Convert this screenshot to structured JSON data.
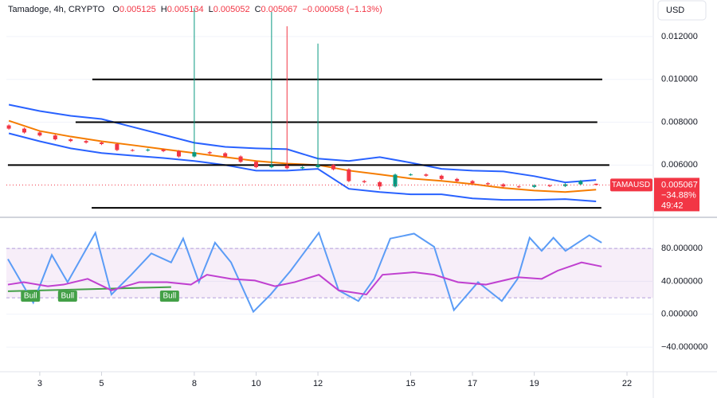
{
  "chart_data": [
    {
      "type": "candlestick",
      "header": {
        "symbol": "Tamadoge, 4h, CRYPTO",
        "ohlc": [
          {
            "key": "O",
            "value": "0.005125"
          },
          {
            "key": "H",
            "value": "0.005134"
          },
          {
            "key": "L",
            "value": "0.005052"
          },
          {
            "key": "C",
            "value": "0.005067"
          }
        ],
        "change": "−0.000058 (−1.13%)"
      },
      "currency": "USD",
      "xlim": [
        1.92,
        22.85
      ],
      "xticks": [
        3,
        5,
        8,
        10,
        12,
        15,
        17,
        19,
        22
      ],
      "ylim": [
        0.00367,
        0.01341
      ],
      "yticks": [
        {
          "value": 0.012,
          "label": "0.012000"
        },
        {
          "value": 0.01,
          "label": "0.010000"
        },
        {
          "value": 0.008,
          "label": "0.008000"
        },
        {
          "value": 0.006,
          "label": "0.006000"
        }
      ],
      "up_color": "#089981",
      "down_color": "#f23645",
      "candles": {
        "x": [
          2.0,
          2.5,
          3.0,
          3.5,
          4.0,
          4.5,
          5.0,
          5.5,
          6.0,
          6.5,
          7.0,
          7.5,
          8.0,
          8.5,
          9.0,
          9.5,
          10.0,
          10.5,
          11.0,
          11.5,
          12.0,
          12.5,
          13.0,
          13.5,
          14.0,
          14.5,
          15.0,
          15.5,
          16.0,
          16.5,
          17.0,
          17.5,
          18.0,
          18.5,
          19.0,
          19.5,
          20.0,
          20.5,
          21.0
        ],
        "open": [
          0.00785,
          0.0077,
          0.00752,
          0.00738,
          0.0072,
          0.00712,
          0.00705,
          0.00698,
          0.0067,
          0.00668,
          0.00672,
          0.00665,
          0.0064,
          0.0066,
          0.00655,
          0.0064,
          0.00615,
          0.0059,
          0.00598,
          0.00585,
          0.0059,
          0.006,
          0.0058,
          0.00525,
          0.0052,
          0.005,
          0.00555,
          0.00556,
          0.0055,
          0.00535,
          0.00525,
          0.00515,
          0.0051,
          0.005,
          0.00498,
          0.00505,
          0.00502,
          0.0051,
          0.005125
        ],
        "high": [
          0.0079,
          0.00775,
          0.00757,
          0.00743,
          0.00725,
          0.00717,
          0.0071,
          0.00703,
          0.00675,
          0.00677,
          0.00677,
          0.0067,
          0.01333,
          0.00665,
          0.0066,
          0.00645,
          0.0062,
          0.01315,
          0.01248,
          0.00595,
          0.01167,
          0.00605,
          0.00585,
          0.0053,
          0.00525,
          0.0056,
          0.00561,
          0.00561,
          0.00555,
          0.0054,
          0.0053,
          0.0052,
          0.00515,
          0.00505,
          0.0051,
          0.0051,
          0.00515,
          0.0053,
          0.005134
        ],
        "low": [
          0.00765,
          0.00747,
          0.00733,
          0.00715,
          0.00707,
          0.007,
          0.00693,
          0.00665,
          0.00663,
          0.00663,
          0.0066,
          0.00635,
          0.00635,
          0.0065,
          0.00635,
          0.0061,
          0.00585,
          0.00585,
          0.0058,
          0.0058,
          0.00585,
          0.00575,
          0.0052,
          0.00515,
          0.00485,
          0.00495,
          0.0055,
          0.00545,
          0.0053,
          0.0052,
          0.0051,
          0.00505,
          0.00495,
          0.00493,
          0.00493,
          0.00497,
          0.00497,
          0.00505,
          0.005052
        ],
        "close": [
          0.0077,
          0.00752,
          0.00738,
          0.0072,
          0.00712,
          0.00705,
          0.00698,
          0.0067,
          0.00668,
          0.00672,
          0.00665,
          0.0064,
          0.0066,
          0.00655,
          0.0064,
          0.00615,
          0.0059,
          0.00598,
          0.00585,
          0.0059,
          0.006,
          0.0058,
          0.00525,
          0.0052,
          0.005,
          0.00555,
          0.00556,
          0.0055,
          0.00535,
          0.00525,
          0.00515,
          0.0051,
          0.005,
          0.00498,
          0.00505,
          0.00502,
          0.0051,
          0.00525,
          0.005067
        ]
      },
      "bands": {
        "x": [
          2,
          3,
          4,
          5,
          6,
          7,
          8,
          9,
          10,
          11,
          12,
          13,
          14,
          15,
          16,
          17,
          18,
          19,
          20,
          21
        ],
        "series": [
          {
            "color": "#2962ff",
            "values": [
              0.00882,
              0.00852,
              0.0083,
              0.00815,
              0.00778,
              0.00741,
              0.00704,
              0.00685,
              0.00678,
              0.00674,
              0.0063,
              0.00619,
              0.00637,
              0.00611,
              0.00582,
              0.00574,
              0.0057,
              0.00548,
              0.00519,
              0.0053
            ]
          },
          {
            "color": "#f57c00",
            "values": [
              0.00807,
              0.00759,
              0.00733,
              0.00711,
              0.00693,
              0.00674,
              0.00656,
              0.00637,
              0.00619,
              0.00607,
              0.006,
              0.00574,
              0.00556,
              0.00537,
              0.00526,
              0.00511,
              0.00493,
              0.00481,
              0.00474,
              0.00485
            ]
          },
          {
            "color": "#2962ff",
            "values": [
              0.00748,
              0.00711,
              0.00678,
              0.00656,
              0.00644,
              0.00633,
              0.00619,
              0.006,
              0.00574,
              0.00574,
              0.00582,
              0.00489,
              0.00474,
              0.00463,
              0.00463,
              0.00444,
              0.00437,
              0.00437,
              0.00441,
              0.0043
            ]
          }
        ]
      },
      "levels": [
        {
          "value": 0.01,
          "x": [
            4.7,
            21.2
          ]
        },
        {
          "value": 0.008,
          "x": [
            4.16,
            21.04
          ]
        },
        {
          "value": 0.006,
          "x": [
            1.97,
            21.43
          ]
        },
        {
          "value": 0.004,
          "x": [
            4.68,
            21.17
          ]
        }
      ],
      "last_price": {
        "symbol": "TAMAUSD",
        "value": 0.005067,
        "label": "0.005067",
        "change": "−34.88%",
        "countdown": "49:42",
        "color": "#f23645"
      }
    },
    {
      "type": "line",
      "ylim": [
        -68,
        113
      ],
      "yticks": [
        {
          "value": 80,
          "label": "80.000000"
        },
        {
          "value": 40,
          "label": "40.000000"
        },
        {
          "value": 0,
          "label": "0.000000"
        },
        {
          "value": -40,
          "label": "−40.000000"
        }
      ],
      "band": [
        20,
        80
      ],
      "series": [
        {
          "color": "#5b9cf6",
          "x": [
            1.97,
            2.48,
            2.79,
            3.39,
            3.9,
            4.8,
            5.32,
            5.96,
            6.61,
            7.25,
            7.64,
            8.15,
            8.67,
            9.19,
            9.91,
            10.47,
            11.12,
            12.03,
            12.67,
            13.31,
            13.82,
            14.34,
            15.11,
            15.76,
            16.4,
            17.18,
            17.95,
            18.46,
            18.85,
            19.24,
            19.62,
            20.01,
            20.78,
            21.18
          ],
          "values": [
            67,
            34,
            14,
            72,
            39,
            99,
            24,
            48,
            74,
            63,
            92,
            39,
            87,
            63,
            3,
            24,
            53,
            99,
            29,
            16,
            43,
            92,
            98,
            82,
            5,
            39,
            16,
            43,
            93,
            77,
            93,
            77,
            96,
            87
          ]
        },
        {
          "color": "#c040d0",
          "x": [
            1.97,
            2.48,
            3.26,
            3.77,
            4.55,
            5.32,
            6.22,
            7.12,
            7.89,
            8.41,
            9.19,
            9.96,
            10.61,
            11.25,
            12.03,
            12.67,
            13.57,
            14.09,
            15.11,
            15.76,
            16.53,
            17.43,
            18.46,
            19.24,
            19.76,
            20.53,
            21.18
          ],
          "values": [
            36,
            39,
            34,
            36,
            43,
            29,
            39,
            39,
            36,
            48,
            43,
            41,
            34,
            39,
            48,
            29,
            24,
            48,
            51,
            48,
            39,
            36,
            45,
            43,
            53,
            63,
            58
          ]
        }
      ],
      "bull_line": {
        "color": "#43a047",
        "x": [
          1.97,
          7.25
        ],
        "values": [
          28,
          33
        ]
      },
      "signals": [
        {
          "label": "Bull",
          "x": 2.7,
          "value": 22
        },
        {
          "label": "Bull",
          "x": 3.9,
          "value": 22
        },
        {
          "label": "Bull",
          "x": 7.2,
          "value": 22
        }
      ]
    }
  ]
}
